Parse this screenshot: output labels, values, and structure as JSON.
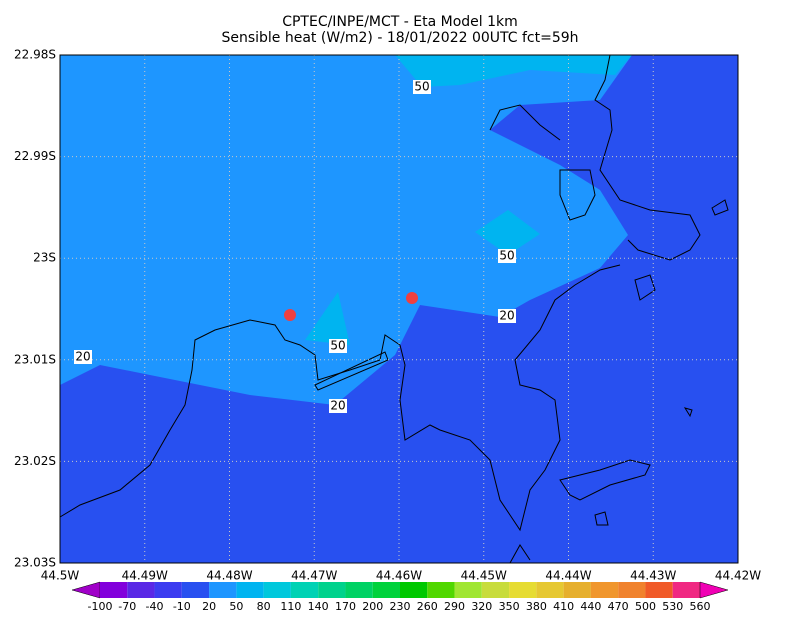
{
  "header": {
    "title": "CPTEC/INPE/MCT -  Eta Model 1km",
    "subtitle": "Sensible heat (W/m2) - 18/01/2022 00UTC fct=59h"
  },
  "map": {
    "x_labels": [
      "44.5W",
      "44.49W",
      "44.48W",
      "44.47W",
      "44.46W",
      "44.45W",
      "44.44W",
      "44.43W",
      "44.42W"
    ],
    "y_labels": [
      "22.98S",
      "22.99S",
      "23S",
      "23.01S",
      "23.02S",
      "23.03S"
    ],
    "contour_labels": [
      50,
      50,
      20,
      20,
      50,
      20
    ]
  },
  "colorbar": {
    "levels": [
      -100,
      -70,
      -40,
      -10,
      20,
      50,
      80,
      110,
      140,
      170,
      200,
      230,
      260,
      290,
      320,
      350,
      380,
      410,
      440,
      470,
      500,
      530,
      560
    ],
    "colors": [
      "#a000c8",
      "#8200dc",
      "#5a28e6",
      "#3c3cf0",
      "#2850f0",
      "#1e96ff",
      "#00b4f0",
      "#00c8dc",
      "#00d2b4",
      "#00d28c",
      "#00d264",
      "#00d23c",
      "#00c800",
      "#50d700",
      "#a0e632",
      "#c8dc3c",
      "#e6dc32",
      "#e6c832",
      "#e6af2d",
      "#f0962d",
      "#f0822d",
      "#f05a28",
      "#f02882",
      "#f000b4"
    ]
  }
}
